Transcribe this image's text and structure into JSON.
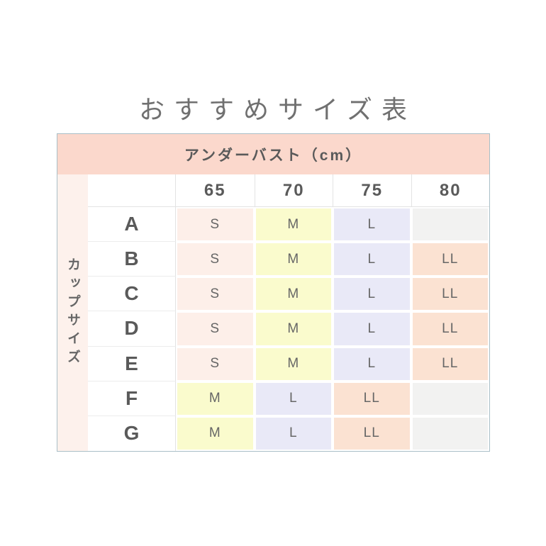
{
  "page": {
    "title": "おすすめサイズ表"
  },
  "table": {
    "header_label": "アンダーバスト（cm）",
    "side_label": "カップサイズ",
    "columns": [
      "65",
      "70",
      "75",
      "80"
    ],
    "rows": [
      {
        "cup": "A",
        "cells": [
          "S",
          "M",
          "L",
          ""
        ]
      },
      {
        "cup": "B",
        "cells": [
          "S",
          "M",
          "L",
          "LL"
        ]
      },
      {
        "cup": "C",
        "cells": [
          "S",
          "M",
          "L",
          "LL"
        ]
      },
      {
        "cup": "D",
        "cells": [
          "S",
          "M",
          "L",
          "LL"
        ]
      },
      {
        "cup": "E",
        "cells": [
          "S",
          "M",
          "L",
          "LL"
        ]
      },
      {
        "cup": "F",
        "cells": [
          "M",
          "L",
          "LL",
          ""
        ]
      },
      {
        "cup": "G",
        "cells": [
          "M",
          "L",
          "LL",
          ""
        ]
      }
    ],
    "colors": {
      "header_bg": "#fbd8cc",
      "side_bg": "#fdf1ec",
      "S": "#fdefe9",
      "M": "#fafbcd",
      "L": "#e9e9f7",
      "LL": "#fbe2d2",
      "empty": "#f2f2f1",
      "border": "#a9bfc7"
    }
  },
  "chart_data": {
    "type": "table",
    "title": "おすすめサイズ表",
    "column_group_label": "アンダーバスト（cm）",
    "row_group_label": "カップサイズ",
    "columns": [
      "65",
      "70",
      "75",
      "80"
    ],
    "rows": [
      "A",
      "B",
      "C",
      "D",
      "E",
      "F",
      "G"
    ],
    "values": [
      [
        "S",
        "M",
        "L",
        ""
      ],
      [
        "S",
        "M",
        "L",
        "LL"
      ],
      [
        "S",
        "M",
        "L",
        "LL"
      ],
      [
        "S",
        "M",
        "L",
        "LL"
      ],
      [
        "S",
        "M",
        "L",
        "LL"
      ],
      [
        "M",
        "L",
        "LL",
        ""
      ],
      [
        "M",
        "L",
        "LL",
        ""
      ]
    ],
    "legend": {
      "S": "pink cell",
      "M": "yellow cell",
      "L": "lavender cell",
      "LL": "peach cell",
      "": "gray empty cell"
    }
  }
}
